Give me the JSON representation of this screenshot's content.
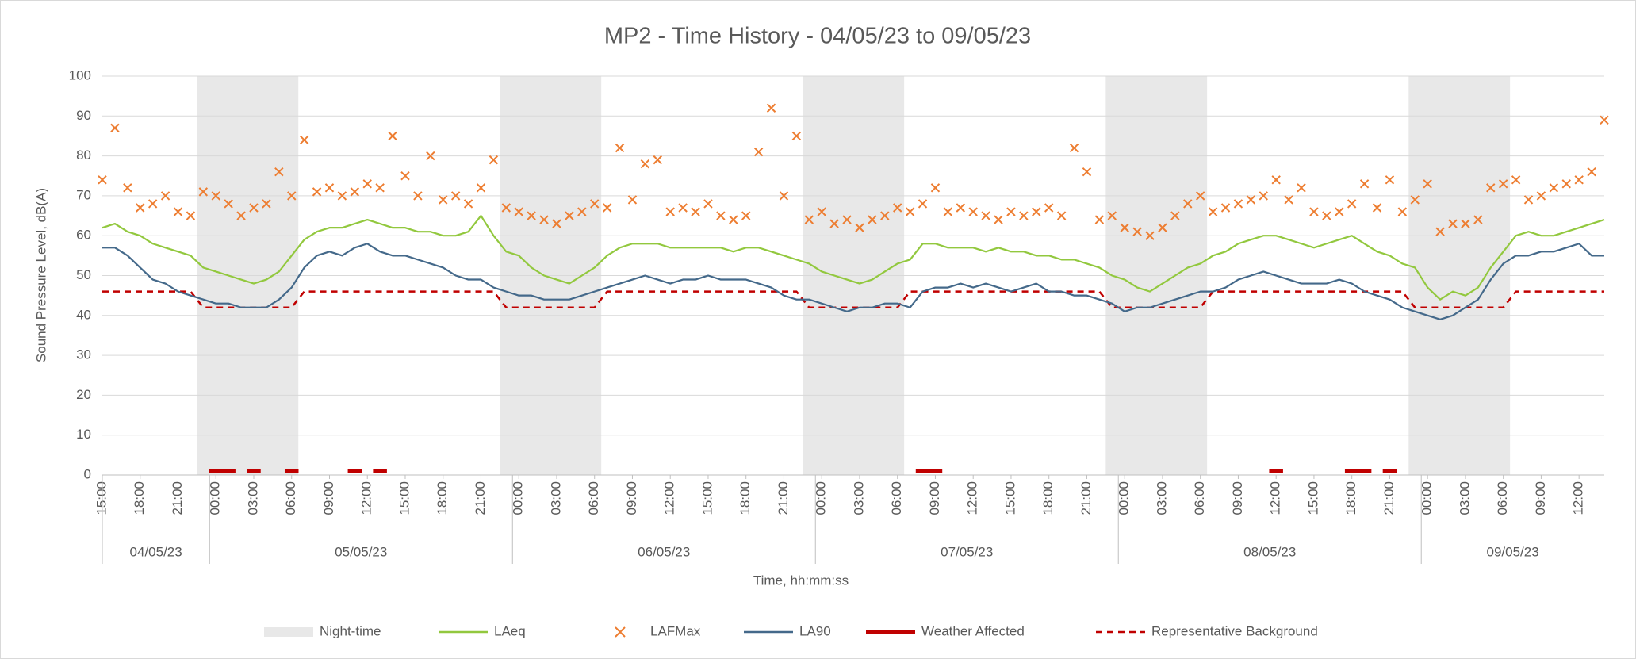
{
  "chart_data": {
    "type": "line",
    "title": "MP2 - Time History - 04/05/23 to 09/05/23",
    "y_label": "Sound Pressure Level, dB(A)",
    "x_label": "Time, hh:mm:ss",
    "ylim": [
      0,
      100
    ],
    "yticks": [
      0,
      10,
      20,
      30,
      40,
      50,
      60,
      70,
      80,
      90,
      100
    ],
    "grid": true,
    "legend": "bottom",
    "categories": [
      "15:00",
      null,
      null,
      "18:00",
      null,
      null,
      "21:00",
      null,
      null,
      "00:00",
      null,
      null,
      "03:00",
      null,
      null,
      "06:00",
      null,
      null,
      "09:00",
      null,
      null,
      "12:00",
      null,
      null,
      "15:00",
      null,
      null,
      "18:00",
      null,
      null,
      "21:00",
      null,
      null,
      "00:00",
      null,
      null,
      "03:00",
      null,
      null,
      "06:00",
      null,
      null,
      "09:00",
      null,
      null,
      "12:00",
      null,
      null,
      "15:00",
      null,
      null,
      "18:00",
      null,
      null,
      "21:00",
      null,
      null,
      "00:00",
      null,
      null,
      "03:00",
      null,
      null,
      "06:00",
      null,
      null,
      "09:00",
      null,
      null,
      "12:00",
      null,
      null,
      "15:00",
      null,
      null,
      "18:00",
      null,
      null,
      "21:00",
      null,
      null,
      "00:00",
      null,
      null,
      "03:00",
      null,
      null,
      "06:00",
      null,
      null,
      "09:00",
      null,
      null,
      "12:00",
      null,
      null,
      "15:00",
      null,
      null,
      "18:00",
      null,
      null,
      "21:00",
      null,
      null,
      "00:00",
      null,
      null,
      "03:00",
      null,
      null,
      "06:00",
      null,
      null,
      "09:00",
      null,
      null,
      "12:00",
      null,
      null
    ],
    "date_groups": [
      {
        "label": "04/05/23",
        "count": 9
      },
      {
        "label": "05/05/23",
        "count": 24
      },
      {
        "label": "06/05/23",
        "count": 24
      },
      {
        "label": "07/05/23",
        "count": 24
      },
      {
        "label": "08/05/23",
        "count": 24
      },
      {
        "label": "09/05/23",
        "count": 15
      }
    ],
    "series": [
      {
        "name": "Night-time",
        "kind": "bar",
        "color": "#e8e8e8",
        "values": [
          null,
          null,
          null,
          null,
          null,
          null,
          null,
          null,
          100,
          100,
          100,
          100,
          100,
          100,
          100,
          100,
          null,
          null,
          null,
          null,
          null,
          null,
          null,
          null,
          null,
          null,
          null,
          null,
          null,
          null,
          null,
          null,
          100,
          100,
          100,
          100,
          100,
          100,
          100,
          100,
          null,
          null,
          null,
          null,
          null,
          null,
          null,
          null,
          null,
          null,
          null,
          null,
          null,
          null,
          null,
          null,
          100,
          100,
          100,
          100,
          100,
          100,
          100,
          100,
          null,
          null,
          null,
          null,
          null,
          null,
          null,
          null,
          null,
          null,
          null,
          null,
          null,
          null,
          null,
          null,
          100,
          100,
          100,
          100,
          100,
          100,
          100,
          100,
          null,
          null,
          null,
          null,
          null,
          null,
          null,
          null,
          null,
          null,
          null,
          null,
          null,
          null,
          null,
          null,
          100,
          100,
          100,
          100,
          100,
          100,
          100,
          100,
          null,
          null,
          null,
          null,
          null,
          null,
          null,
          null
        ]
      },
      {
        "name": "LAeq",
        "kind": "line",
        "color": "#92c83e",
        "values": [
          62,
          63,
          61,
          60,
          58,
          57,
          56,
          55,
          52,
          51,
          50,
          49,
          48,
          49,
          51,
          55,
          59,
          61,
          62,
          62,
          63,
          64,
          63,
          62,
          62,
          61,
          61,
          60,
          60,
          61,
          65,
          60,
          56,
          55,
          52,
          50,
          49,
          48,
          50,
          52,
          55,
          57,
          58,
          58,
          58,
          57,
          57,
          57,
          57,
          57,
          56,
          57,
          57,
          56,
          55,
          54,
          53,
          51,
          50,
          49,
          48,
          49,
          51,
          53,
          54,
          58,
          58,
          57,
          57,
          57,
          56,
          57,
          56,
          56,
          55,
          55,
          54,
          54,
          53,
          52,
          50,
          49,
          47,
          46,
          48,
          50,
          52,
          53,
          55,
          56,
          58,
          59,
          60,
          60,
          59,
          58,
          57,
          58,
          59,
          60,
          58,
          56,
          55,
          53,
          52,
          47,
          44,
          46,
          45,
          47,
          52,
          56,
          60,
          61,
          60,
          60,
          61,
          62,
          63,
          64
        ]
      },
      {
        "name": "LAFMax",
        "kind": "marker",
        "color": "#ed7d31",
        "values": [
          74,
          87,
          72,
          67,
          68,
          70,
          66,
          65,
          71,
          70,
          68,
          65,
          67,
          68,
          76,
          70,
          84,
          71,
          72,
          70,
          71,
          73,
          72,
          85,
          75,
          70,
          80,
          69,
          70,
          68,
          72,
          79,
          67,
          66,
          65,
          64,
          63,
          65,
          66,
          68,
          67,
          82,
          69,
          78,
          79,
          66,
          67,
          66,
          68,
          65,
          64,
          65,
          81,
          92,
          70,
          85,
          64,
          66,
          63,
          64,
          62,
          64,
          65,
          67,
          66,
          68,
          72,
          66,
          67,
          66,
          65,
          64,
          66,
          65,
          66,
          67,
          65,
          82,
          76,
          64,
          65,
          62,
          61,
          60,
          62,
          65,
          68,
          70,
          66,
          67,
          68,
          69,
          70,
          74,
          69,
          72,
          66,
          65,
          66,
          68,
          73,
          67,
          74,
          66,
          69,
          73,
          61,
          63,
          63,
          64,
          72,
          73,
          74,
          69,
          70,
          72,
          73,
          74,
          76,
          89
        ]
      },
      {
        "name": "LA90",
        "kind": "line",
        "color": "#44698a",
        "values": [
          57,
          57,
          55,
          52,
          49,
          48,
          46,
          45,
          44,
          43,
          43,
          42,
          42,
          42,
          44,
          47,
          52,
          55,
          56,
          55,
          57,
          58,
          56,
          55,
          55,
          54,
          53,
          52,
          50,
          49,
          49,
          47,
          46,
          45,
          45,
          44,
          44,
          44,
          45,
          46,
          47,
          48,
          49,
          50,
          49,
          48,
          49,
          49,
          50,
          49,
          49,
          49,
          48,
          47,
          45,
          44,
          44,
          43,
          42,
          41,
          42,
          42,
          43,
          43,
          42,
          46,
          47,
          47,
          48,
          47,
          48,
          47,
          46,
          47,
          48,
          46,
          46,
          45,
          45,
          44,
          43,
          41,
          42,
          42,
          43,
          44,
          45,
          46,
          46,
          47,
          49,
          50,
          51,
          50,
          49,
          48,
          48,
          48,
          49,
          48,
          46,
          45,
          44,
          42,
          41,
          40,
          39,
          40,
          42,
          44,
          49,
          53,
          55,
          55,
          56,
          56,
          57,
          58,
          55,
          55
        ]
      },
      {
        "name": "Weather Affected",
        "kind": "segment",
        "color": "#c00000",
        "values": [
          null,
          null,
          null,
          null,
          null,
          null,
          null,
          null,
          null,
          1,
          1,
          null,
          1,
          null,
          null,
          1,
          null,
          null,
          null,
          null,
          1,
          null,
          1,
          null,
          null,
          null,
          null,
          null,
          null,
          null,
          null,
          null,
          null,
          null,
          null,
          null,
          null,
          null,
          null,
          null,
          null,
          null,
          null,
          null,
          null,
          null,
          null,
          null,
          null,
          null,
          null,
          null,
          null,
          null,
          null,
          null,
          null,
          null,
          null,
          null,
          null,
          null,
          null,
          null,
          null,
          1,
          1,
          null,
          null,
          null,
          null,
          null,
          null,
          null,
          null,
          null,
          null,
          null,
          null,
          null,
          null,
          null,
          null,
          null,
          null,
          null,
          null,
          null,
          null,
          null,
          null,
          null,
          null,
          1,
          null,
          null,
          null,
          null,
          null,
          1,
          1,
          null,
          1,
          null,
          null,
          null,
          null,
          null,
          null,
          null,
          null,
          null,
          null,
          null,
          null,
          null,
          null,
          null,
          null,
          null
        ]
      },
      {
        "name": "Representative Background",
        "kind": "dashed",
        "color": "#c00000",
        "values": [
          46,
          46,
          46,
          46,
          46,
          46,
          46,
          46,
          42,
          42,
          42,
          42,
          42,
          42,
          42,
          42,
          46,
          46,
          46,
          46,
          46,
          46,
          46,
          46,
          46,
          46,
          46,
          46,
          46,
          46,
          46,
          46,
          42,
          42,
          42,
          42,
          42,
          42,
          42,
          42,
          46,
          46,
          46,
          46,
          46,
          46,
          46,
          46,
          46,
          46,
          46,
          46,
          46,
          46,
          46,
          46,
          42,
          42,
          42,
          42,
          42,
          42,
          42,
          42,
          46,
          46,
          46,
          46,
          46,
          46,
          46,
          46,
          46,
          46,
          46,
          46,
          46,
          46,
          46,
          46,
          42,
          42,
          42,
          42,
          42,
          42,
          42,
          42,
          46,
          46,
          46,
          46,
          46,
          46,
          46,
          46,
          46,
          46,
          46,
          46,
          46,
          46,
          46,
          46,
          42,
          42,
          42,
          42,
          42,
          42,
          42,
          42,
          46,
          46,
          46,
          46,
          46,
          46,
          46,
          46
        ]
      }
    ]
  }
}
